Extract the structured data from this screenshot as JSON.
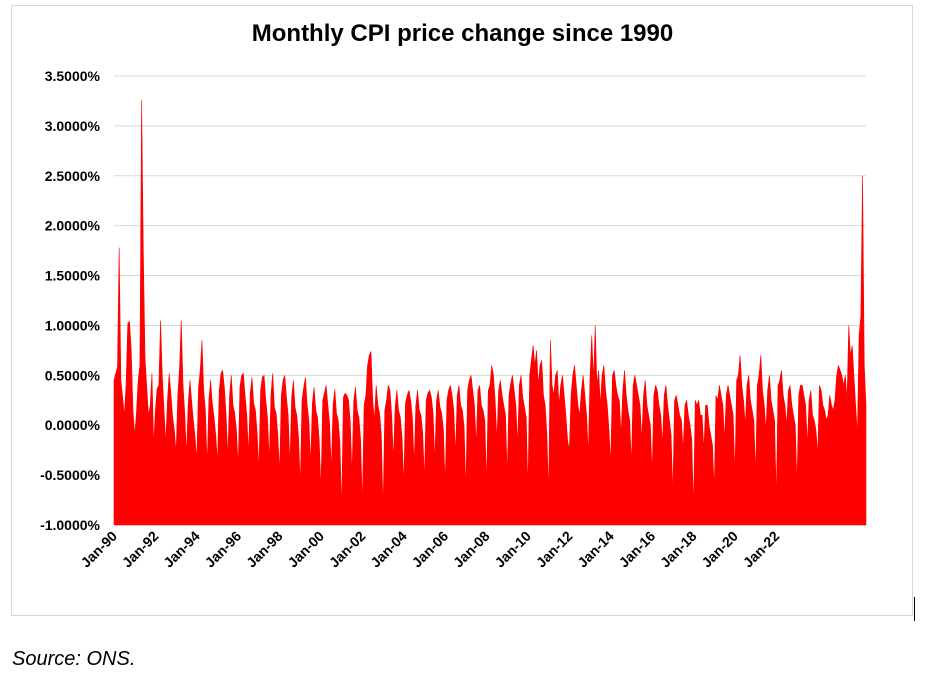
{
  "chart_data": {
    "type": "area",
    "title": "Monthly CPI price change since 1990",
    "xlabel": "",
    "ylabel": "",
    "ylim": [
      -0.01,
      0.035
    ],
    "y_ticks": [
      -0.01,
      -0.005,
      0.0,
      0.005,
      0.01,
      0.015,
      0.02,
      0.025,
      0.03,
      0.035
    ],
    "y_tick_labels": [
      "-1.0000%",
      "-0.5000%",
      "0.0000%",
      "0.5000%",
      "1.0000%",
      "1.5000%",
      "2.0000%",
      "2.5000%",
      "3.0000%",
      "3.5000%"
    ],
    "x_tick_labels": [
      "Jan-90",
      "Jan-92",
      "Jan-94",
      "Jan-96",
      "Jan-98",
      "Jan-00",
      "Jan-02",
      "Jan-04",
      "Jan-06",
      "Jan-08",
      "Jan-10",
      "Jan-12",
      "Jan-14",
      "Jan-16",
      "Jan-18",
      "Jan-20",
      "Jan-22"
    ],
    "x_start": "Jan-90",
    "x_end": "Apr-22",
    "grid": "horizontal",
    "colors": {
      "fill": "#ff0000",
      "grid": "#d9d9d9"
    },
    "series": [
      {
        "values": [
          0.0045,
          0.0052,
          0.0058,
          0.0178,
          0.0045,
          0.0028,
          0.001,
          0.0041,
          0.0102,
          0.0104,
          0.0075,
          0.0015,
          -0.001,
          0.0012,
          0.0045,
          0.006,
          0.0326,
          0.0175,
          0.0067,
          0.0038,
          0.001,
          0.002,
          0.0052,
          -0.002,
          0.0015,
          0.0037,
          0.004,
          0.0105,
          0.005,
          0.0015,
          -0.0018,
          0.0025,
          0.0052,
          0.0031,
          0.0008,
          -0.0005,
          -0.0028,
          0.003,
          0.0058,
          0.0105,
          0.0041,
          0.0012,
          -0.003,
          0.0021,
          0.0045,
          0.0025,
          0.0005,
          -0.0012,
          -0.0035,
          0.0038,
          0.0055,
          0.0085,
          0.0035,
          0.0015,
          -0.004,
          0.0025,
          0.0045,
          0.0022,
          0.0008,
          -0.001,
          -0.0038,
          0.0035,
          0.0052,
          0.0055,
          0.0038,
          0.001,
          -0.0032,
          0.003,
          0.005,
          0.002,
          0.0012,
          -0.0005,
          -0.0042,
          0.0038,
          0.005,
          0.0052,
          0.003,
          0.001,
          -0.003,
          0.0032,
          0.0048,
          0.0022,
          0.0015,
          -0.0008,
          -0.0045,
          0.0035,
          0.0048,
          0.005,
          0.0025,
          0.0008,
          -0.0035,
          0.003,
          0.0052,
          0.0018,
          0.0012,
          -0.001,
          -0.0048,
          0.003,
          0.0045,
          0.005,
          0.0028,
          0.001,
          -0.004,
          0.0028,
          0.0045,
          0.0018,
          0.001,
          -0.0012,
          -0.006,
          0.0025,
          0.0038,
          0.0048,
          0.002,
          0.0005,
          -0.004,
          0.0022,
          0.0038,
          0.0015,
          0.0008,
          -0.0015,
          -0.0065,
          0.0025,
          0.0032,
          0.004,
          0.002,
          0.0002,
          -0.0045,
          0.002,
          0.0036,
          0.0012,
          0.0005,
          -0.0018,
          -0.0085,
          0.0028,
          0.0032,
          0.003,
          0.0025,
          0.0003,
          -0.005,
          0.0025,
          0.0038,
          0.0015,
          0.0008,
          -0.0015,
          -0.008,
          0.002,
          0.003,
          0.006,
          0.007,
          0.0074,
          0.0025,
          0.0005,
          0.004,
          0.002,
          0.0012,
          -0.001,
          -0.0085,
          0.0015,
          0.0025,
          0.004,
          0.0035,
          0.001,
          -0.0035,
          0.0018,
          0.0035,
          0.0015,
          0.0008,
          -0.0012,
          -0.006,
          0.0022,
          0.003,
          0.0035,
          0.0025,
          0.0008,
          -0.004,
          0.002,
          0.0035,
          0.0015,
          0.001,
          -0.0008,
          -0.0055,
          0.0025,
          0.0032,
          0.0035,
          0.0028,
          0.0012,
          -0.0035,
          0.0025,
          0.0035,
          0.0018,
          0.0012,
          -0.0005,
          -0.006,
          0.0025,
          0.0035,
          0.004,
          0.003,
          0.0015,
          -0.003,
          0.003,
          0.004,
          0.002,
          0.0015,
          -0.0002,
          -0.0065,
          0.0035,
          0.0045,
          0.005,
          0.0035,
          0.002,
          -0.002,
          0.0035,
          0.004,
          0.002,
          0.0015,
          0.0005,
          -0.006,
          0.0035,
          0.004,
          0.006,
          0.005,
          0.0025,
          -0.0015,
          0.0035,
          0.0045,
          0.003,
          0.002,
          0.001,
          -0.005,
          0.003,
          0.0042,
          0.005,
          0.0035,
          0.002,
          -0.002,
          0.004,
          0.005,
          0.0028,
          0.0018,
          0.0008,
          -0.0065,
          0.005,
          0.0065,
          0.008,
          0.006,
          0.0075,
          0.004,
          0.006,
          0.0065,
          0.003,
          0.002,
          -0.001,
          -0.007,
          0.0085,
          0.004,
          0.003,
          0.005,
          0.0055,
          0.002,
          0.004,
          0.005,
          0.003,
          0.001,
          -0.0015,
          -0.0025,
          0.003,
          0.005,
          0.006,
          0.004,
          0.002,
          0.001,
          0.0035,
          0.005,
          0.003,
          0.001,
          -0.003,
          0.005,
          0.009,
          0.0045,
          0.01,
          0.004,
          0.0055,
          0.002,
          0.005,
          0.006,
          0.0035,
          0.002,
          -0.0005,
          -0.004,
          0.005,
          0.0055,
          0.004,
          0.003,
          0.0025,
          -0.001,
          0.0035,
          0.0055,
          0.003,
          0.0015,
          0.0005,
          -0.004,
          0.004,
          0.005,
          0.004,
          0.003,
          0.002,
          -0.0015,
          0.003,
          0.0045,
          0.002,
          0.001,
          0.0,
          -0.005,
          0.003,
          0.004,
          0.0035,
          0.002,
          0.001,
          -0.002,
          0.003,
          0.004,
          0.002,
          0.0005,
          -0.001,
          -0.007,
          0.0025,
          0.003,
          0.002,
          0.001,
          0.0005,
          -0.0025,
          0.002,
          0.0025,
          0.001,
          0.0,
          -0.0015,
          -0.0085,
          0.0025,
          0.002,
          0.0025,
          0.001,
          0.001,
          -0.0025,
          0.002,
          0.002,
          0.0,
          -0.001,
          -0.002,
          -0.0065,
          0.003,
          0.0025,
          0.004,
          0.003,
          0.002,
          -0.0015,
          0.003,
          0.004,
          0.003,
          0.002,
          0.001,
          -0.005,
          0.0045,
          0.005,
          0.007,
          0.004,
          0.0025,
          0.0,
          0.004,
          0.005,
          0.0025,
          0.0015,
          0.0005,
          -0.005,
          0.004,
          0.005,
          0.007,
          0.0035,
          0.002,
          -0.0005,
          0.0035,
          0.005,
          0.0025,
          0.0015,
          0.0005,
          -0.0075,
          0.004,
          0.0045,
          0.0055,
          0.003,
          0.002,
          0.0,
          0.0035,
          0.004,
          0.002,
          0.001,
          0.0,
          -0.006,
          0.003,
          0.004,
          0.004,
          0.003,
          0.002,
          -0.002,
          0.0025,
          0.0035,
          0.001,
          0.0005,
          -0.0005,
          -0.003,
          0.004,
          0.0035,
          0.002,
          0.0015,
          0.0005,
          0.001,
          0.003,
          0.002,
          0.0015,
          0.0025,
          0.005,
          0.006,
          0.0055,
          0.005,
          0.004,
          0.005,
          0.0025,
          0.01,
          0.007,
          0.008,
          0.005,
          0.002,
          -0.001,
          0.009,
          0.011,
          0.025,
          0.006,
          0.002
        ]
      }
    ]
  },
  "source": "Source: ONS."
}
